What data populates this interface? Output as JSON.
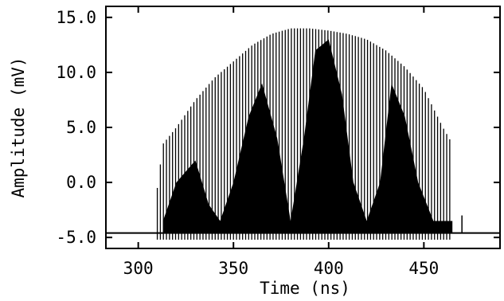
{
  "chart_data": {
    "type": "line",
    "title": "",
    "xlabel": "Time (ns)",
    "ylabel": "Amplitude (mV)",
    "xlim": [
      283,
      490
    ],
    "ylim": [
      -6.0,
      16.0
    ],
    "grid": false,
    "x_ticks": [
      {
        "value": 300,
        "label": "300"
      },
      {
        "value": 350,
        "label": "350"
      },
      {
        "value": 400,
        "label": "400"
      },
      {
        "value": 450,
        "label": "450"
      }
    ],
    "y_ticks": [
      {
        "value": -5,
        "label": "-5.0"
      },
      {
        "value": 0,
        "label": "0.0"
      },
      {
        "value": 5,
        "label": "5.0"
      },
      {
        "value": 10,
        "label": "10.0"
      },
      {
        "value": 15,
        "label": "15.0"
      }
    ],
    "baseline": -4.6,
    "signal_start": 310,
    "signal_end": 465,
    "pulse_spacing_ns": 1.6,
    "envelope": {
      "x": [
        310,
        313,
        320,
        330,
        340,
        350,
        360,
        370,
        380,
        390,
        400,
        410,
        420,
        430,
        440,
        450,
        460,
        465
      ],
      "y": [
        -0.5,
        3.5,
        5.0,
        7.5,
        9.5,
        11.0,
        12.5,
        13.5,
        14.0,
        14.0,
        13.8,
        13.5,
        13.0,
        12.0,
        10.5,
        8.5,
        5.0,
        3.5
      ]
    },
    "inner_envelope": {
      "x": [
        313,
        320,
        330,
        337,
        343,
        350,
        358,
        365,
        373,
        380,
        387,
        393,
        400,
        407,
        413,
        420,
        427,
        433,
        440,
        447,
        455,
        465
      ],
      "y": [
        -3.5,
        0.0,
        2.0,
        -2.0,
        -3.5,
        0.0,
        6.0,
        9.0,
        4.0,
        -3.5,
        4.0,
        12.0,
        13.0,
        8.0,
        0.0,
        -3.5,
        0.0,
        9.0,
        6.0,
        0.0,
        -3.5,
        -3.5
      ]
    },
    "spike_after_signal": {
      "x": 470,
      "y": -3.0
    }
  }
}
